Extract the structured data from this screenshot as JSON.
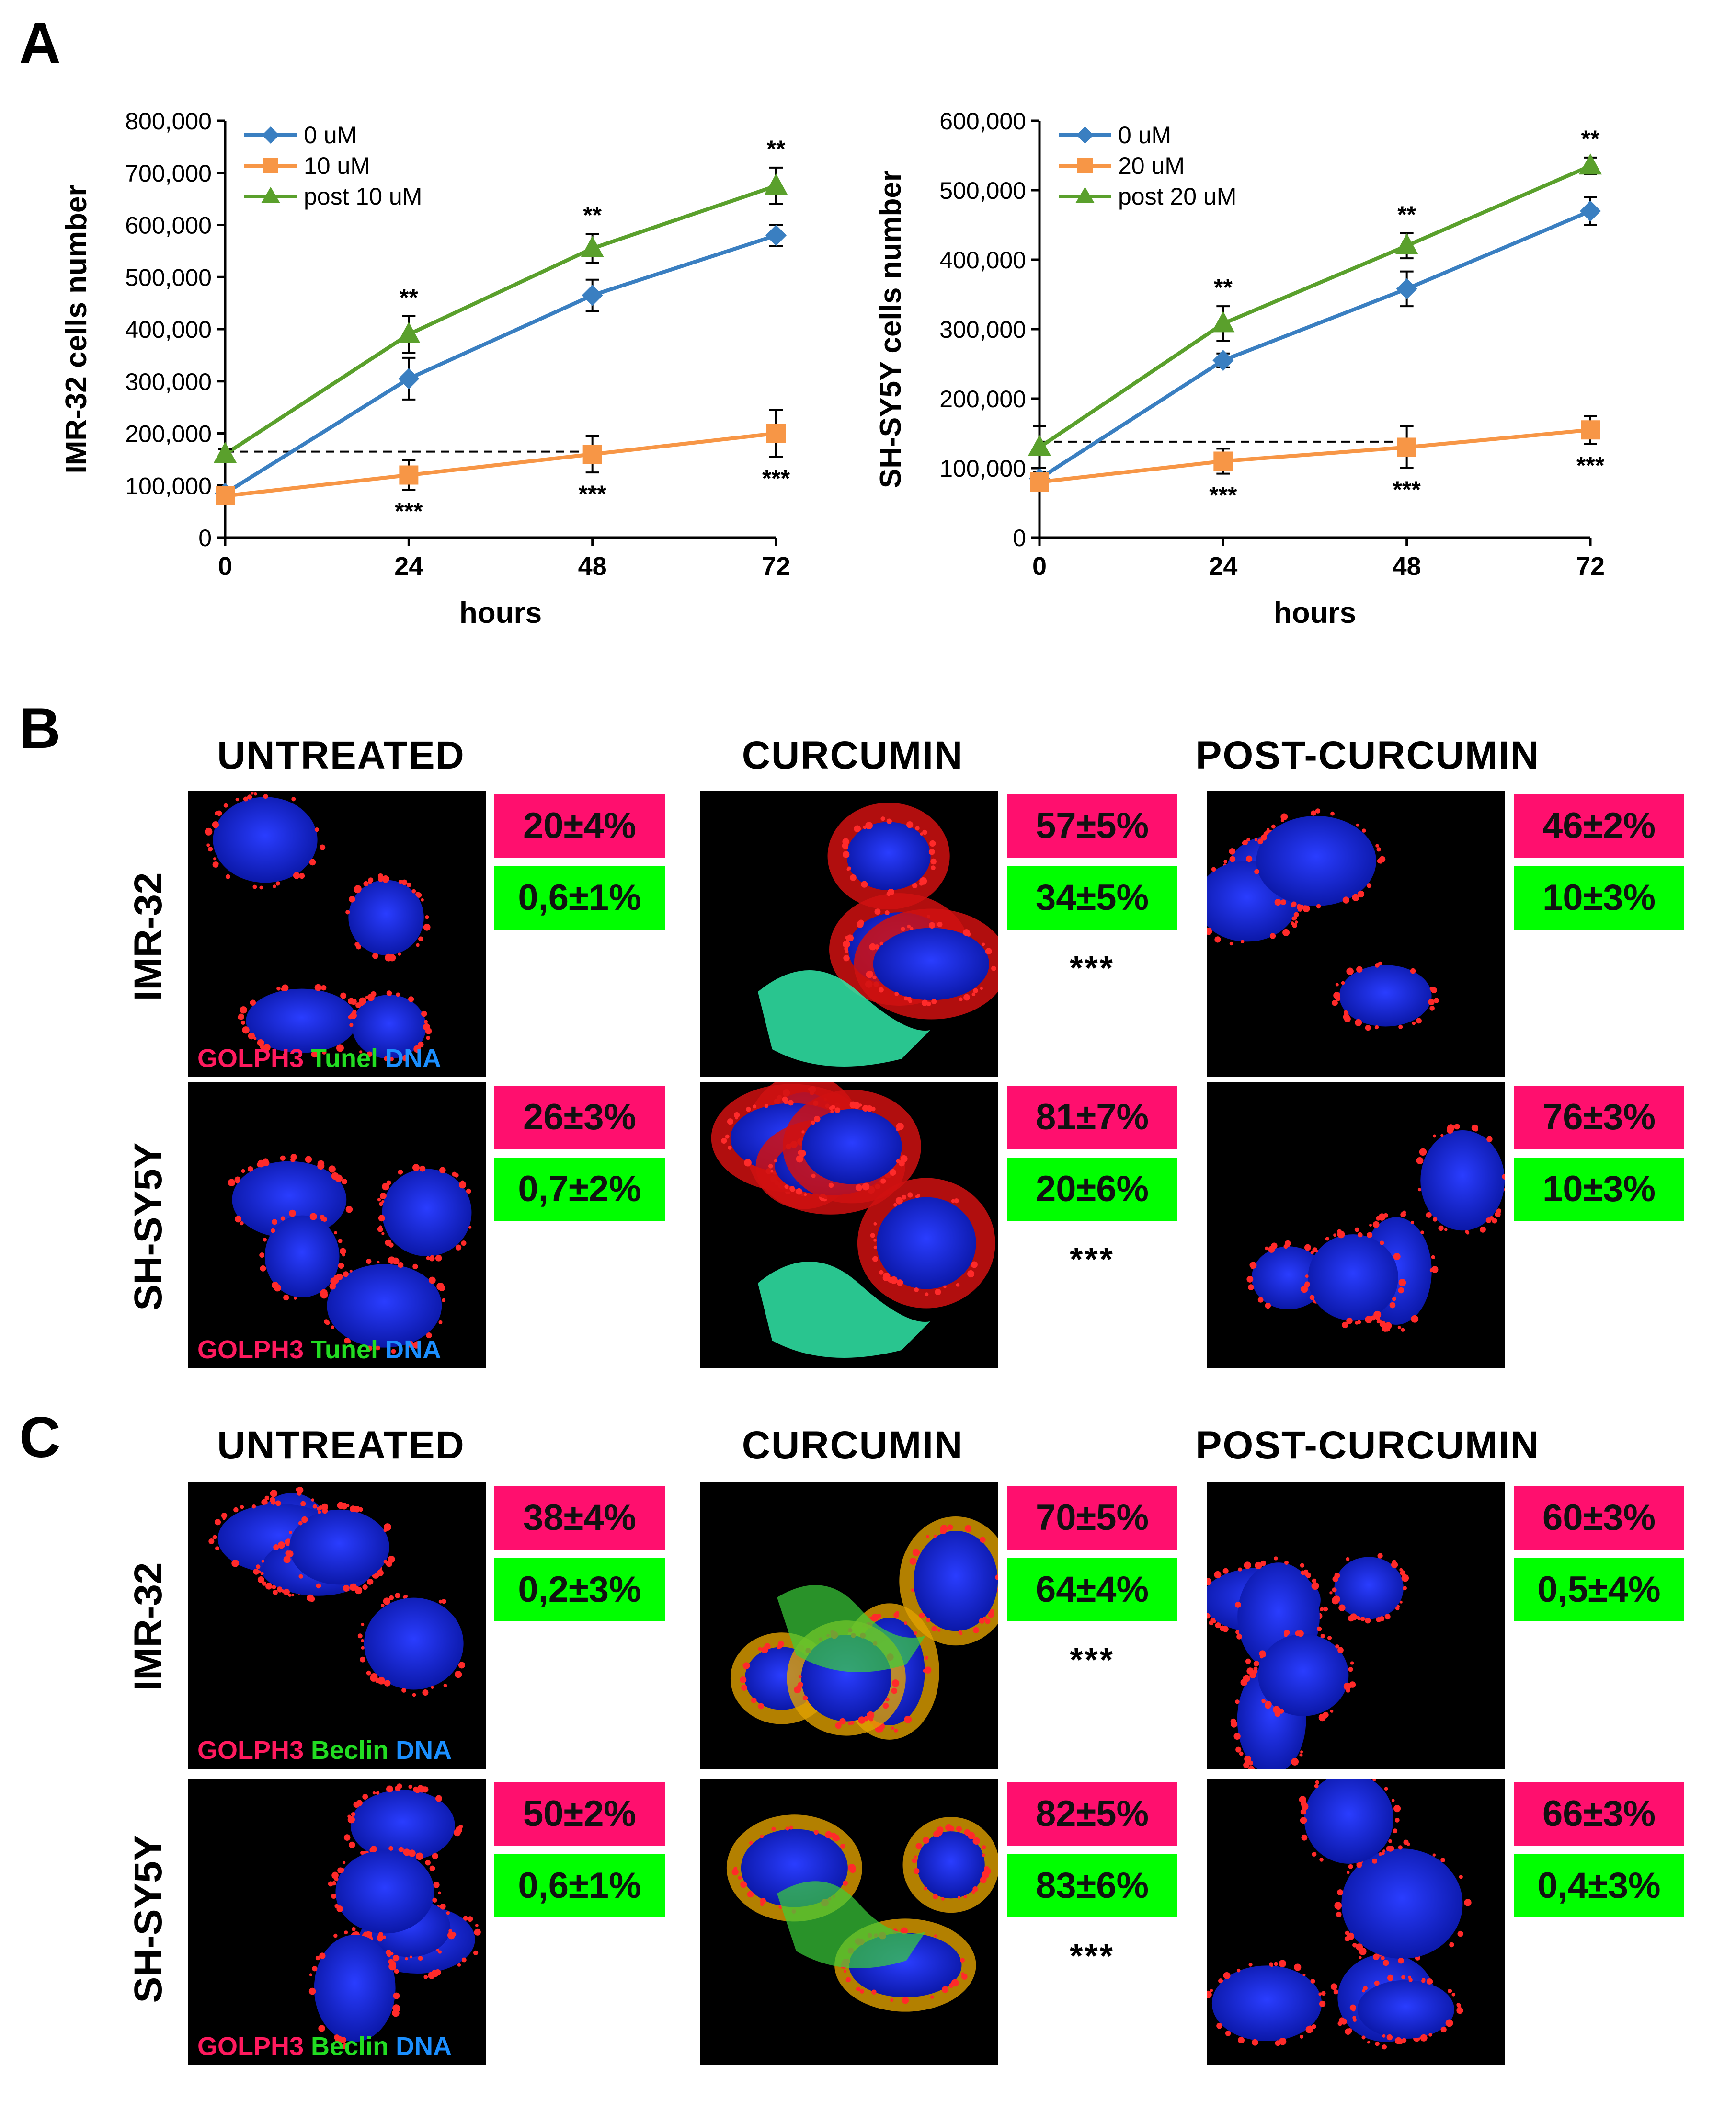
{
  "panels": {
    "a": "A",
    "b": "B",
    "c": "C"
  },
  "colors": {
    "blue": "#3a7fc1",
    "orange": "#f79646",
    "green": "#5aa02c",
    "pink": "#ff0f6e",
    "lime": "#00ff00"
  },
  "chart_data": [
    {
      "type": "line",
      "ylabel": "IMR-32 cells number",
      "xlabel": "hours",
      "x": [
        0,
        24,
        48,
        72
      ],
      "ylim": [
        0,
        800000
      ],
      "yticks": [
        0,
        100000,
        200000,
        300000,
        400000,
        500000,
        600000,
        700000,
        800000
      ],
      "ytick_labels": [
        "0",
        "100,000",
        "200,000",
        "300,000",
        "400,000",
        "500,000",
        "600,000",
        "700,000",
        "800,000"
      ],
      "series": [
        {
          "name": "0 uM",
          "color": "#3a7fc1",
          "marker": "diamond",
          "values": [
            85000,
            305000,
            465000,
            580000
          ],
          "errors": [
            10000,
            40000,
            30000,
            20000
          ]
        },
        {
          "name": "10 uM",
          "color": "#f79646",
          "marker": "square",
          "values": [
            80000,
            120000,
            160000,
            200000
          ],
          "errors": [
            10000,
            28000,
            35000,
            45000
          ]
        },
        {
          "name": "post 10 uM",
          "color": "#5aa02c",
          "marker": "triangle",
          "values": [
            160000,
            390000,
            555000,
            675000
          ],
          "errors": [
            10000,
            35000,
            28000,
            35000
          ]
        }
      ],
      "reference_line": 165000,
      "sig_above": [
        "",
        "**",
        "**",
        "**"
      ],
      "sig_below": [
        "",
        "***",
        "***",
        "***"
      ]
    },
    {
      "type": "line",
      "ylabel": "SH-SY5Y cells number",
      "xlabel": "hours",
      "x": [
        0,
        24,
        48,
        72
      ],
      "ylim": [
        0,
        600000
      ],
      "yticks": [
        0,
        100000,
        200000,
        300000,
        400000,
        500000,
        600000
      ],
      "ytick_labels": [
        "0",
        "100,000",
        "200,000",
        "300,000",
        "400,000",
        "500,000",
        "600,000"
      ],
      "series": [
        {
          "name": "0 uM",
          "color": "#3a7fc1",
          "marker": "diamond",
          "values": [
            85000,
            255000,
            358000,
            470000
          ],
          "errors": [
            10000,
            10000,
            25000,
            20000
          ]
        },
        {
          "name": "20 uM",
          "color": "#f79646",
          "marker": "square",
          "values": [
            80000,
            110000,
            130000,
            155000
          ],
          "errors": [
            10000,
            18000,
            30000,
            20000
          ]
        },
        {
          "name": "post 20 uM",
          "color": "#5aa02c",
          "marker": "triangle",
          "values": [
            130000,
            308000,
            420000,
            535000
          ],
          "errors": [
            30000,
            25000,
            18000,
            12000
          ]
        }
      ],
      "reference_line": 138000,
      "sig_above": [
        "",
        "**",
        "**",
        "**"
      ],
      "sig_below": [
        "",
        "***",
        "***",
        "***"
      ]
    }
  ],
  "section_b": {
    "headers": [
      "UNTREATED",
      "CURCUMIN",
      "POST-CURCUMIN"
    ],
    "rows": [
      "IMR-32",
      "SH-SY5Y"
    ],
    "stain": {
      "red": "GOLPH3",
      "green": "Tunel",
      "blue": "DNA"
    },
    "values": [
      [
        {
          "pink": "20±4%",
          "green": "0,6±1%",
          "stars": ""
        },
        {
          "pink": "57±5%",
          "green": "34±5%",
          "stars": "***"
        },
        {
          "pink": "46±2%",
          "green": "10±3%",
          "stars": ""
        }
      ],
      [
        {
          "pink": "26±3%",
          "green": "0,7±2%",
          "stars": ""
        },
        {
          "pink": "81±7%",
          "green": "20±6%",
          "stars": "***"
        },
        {
          "pink": "76±3%",
          "green": "10±3%",
          "stars": ""
        }
      ]
    ]
  },
  "section_c": {
    "headers": [
      "UNTREATED",
      "CURCUMIN",
      "POST-CURCUMIN"
    ],
    "rows": [
      "IMR-32",
      "SH-SY5Y"
    ],
    "stain": {
      "red": "GOLPH3",
      "green": "Beclin",
      "blue": "DNA"
    },
    "values": [
      [
        {
          "pink": "38±4%",
          "green": "0,2±3%",
          "stars": ""
        },
        {
          "pink": "70±5%",
          "green": "64±4%",
          "stars": "***"
        },
        {
          "pink": "60±3%",
          "green": "0,5±4%",
          "stars": ""
        }
      ],
      [
        {
          "pink": "50±2%",
          "green": "0,6±1%",
          "stars": ""
        },
        {
          "pink": "82±5%",
          "green": "83±6%",
          "stars": "***"
        },
        {
          "pink": "66±3%",
          "green": "0,4±3%",
          "stars": ""
        }
      ]
    ]
  }
}
